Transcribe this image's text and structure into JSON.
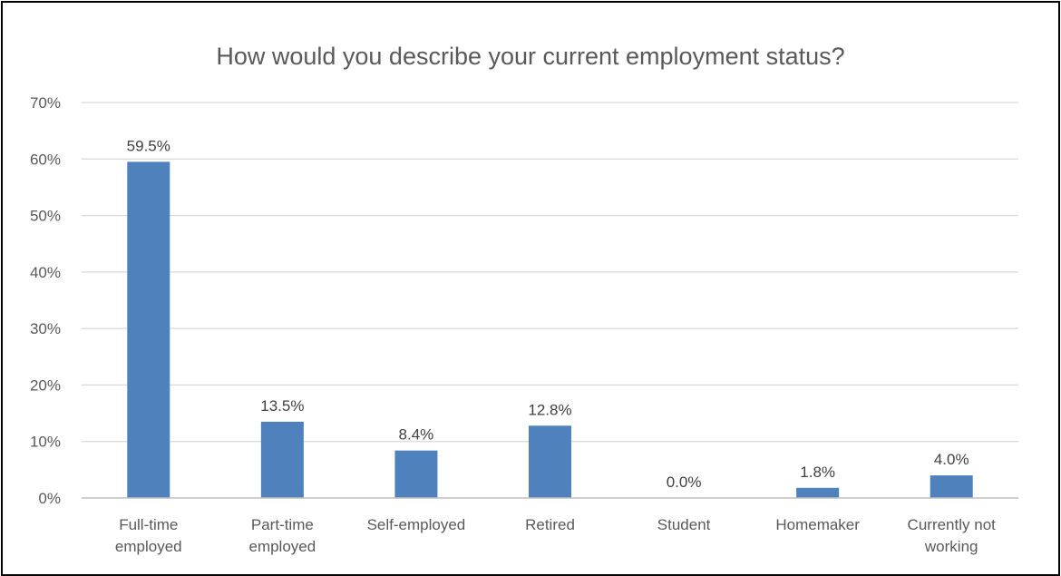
{
  "chart_data": {
    "type": "bar",
    "title": "How would you describe your current employment status?",
    "categories": [
      [
        "Full-time",
        "employed"
      ],
      [
        "Part-time",
        "employed"
      ],
      [
        "Self-employed"
      ],
      [
        "Retired"
      ],
      [
        "Student"
      ],
      [
        "Homemaker"
      ],
      [
        "Currently not",
        "working"
      ]
    ],
    "values": [
      59.5,
      13.5,
      8.4,
      12.8,
      0.0,
      1.8,
      4.0
    ],
    "data_labels": [
      "59.5%",
      "13.5%",
      "8.4%",
      "12.8%",
      "0.0%",
      "1.8%",
      "4.0%"
    ],
    "y_ticks": [
      "0%",
      "10%",
      "20%",
      "30%",
      "40%",
      "50%",
      "60%",
      "70%"
    ],
    "xlabel": "",
    "ylabel": "",
    "ylim": [
      0,
      70
    ],
    "grid": true,
    "legend": "none",
    "bar_color": "#4f81bd"
  }
}
